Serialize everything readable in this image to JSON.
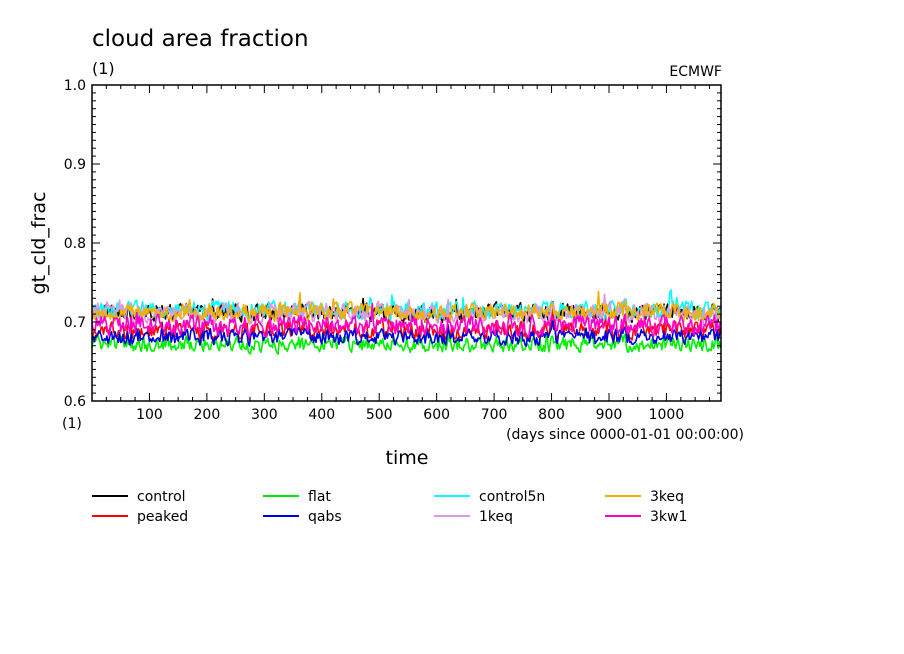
{
  "chart_data": {
    "type": "line",
    "title": "cloud area fraction",
    "units": "(1)",
    "source": "ECMWF",
    "ylabel": "gt_cld_frac",
    "xlabel": "time",
    "xunits": "(days since 0000-01-01 00:00:00)",
    "x_axis_unit_label": "(1)",
    "xlim": [
      0,
      1095
    ],
    "ylim": [
      0.6,
      1.0
    ],
    "xticks": [
      100,
      200,
      300,
      400,
      500,
      600,
      700,
      800,
      900,
      1000
    ],
    "yticks": [
      "0.6",
      "0.7",
      "0.8",
      "0.9",
      "1.0"
    ],
    "grid": false,
    "legend_position": "below-plot",
    "series": [
      {
        "name": "control",
        "color": "#000000",
        "mean": 0.712,
        "amp": 0.01
      },
      {
        "name": "peaked",
        "color": "#ff0000",
        "mean": 0.69,
        "amp": 0.01
      },
      {
        "name": "flat",
        "color": "#00ee00",
        "mean": 0.672,
        "amp": 0.009
      },
      {
        "name": "qabs",
        "color": "#0000dd",
        "mean": 0.681,
        "amp": 0.009
      },
      {
        "name": "control5n",
        "color": "#00ffff",
        "mean": 0.715,
        "amp": 0.01
      },
      {
        "name": "1keq",
        "color": "#dd99dd",
        "mean": 0.712,
        "amp": 0.011
      },
      {
        "name": "3keq",
        "color": "#f0b000",
        "mean": 0.713,
        "amp": 0.01
      },
      {
        "name": "3kw1",
        "color": "#ff00cc",
        "mean": 0.696,
        "amp": 0.011
      }
    ]
  }
}
